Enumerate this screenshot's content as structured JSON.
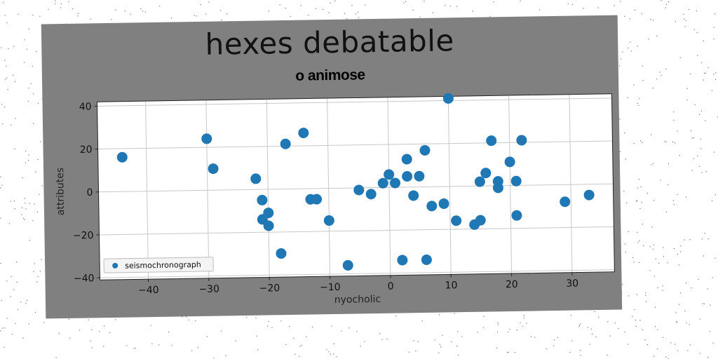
{
  "chart_data": {
    "type": "scatter",
    "title": "hexes debatable",
    "subtitle": "o animose",
    "xlabel": "nyocholic",
    "ylabel": "attributes",
    "xlim": [
      -48,
      37
    ],
    "ylim": [
      -41,
      42
    ],
    "xticks": [
      -40,
      -30,
      -20,
      -10,
      0,
      10,
      20,
      30
    ],
    "yticks": [
      -40,
      -20,
      0,
      20,
      40
    ],
    "grid": true,
    "legend_position": "lower-left",
    "series": [
      {
        "name": "seismochronograph",
        "color": "#1f77b4",
        "points": [
          [
            -44,
            16
          ],
          [
            -30,
            24
          ],
          [
            -29,
            10
          ],
          [
            -22,
            5
          ],
          [
            -21,
            -5
          ],
          [
            -21,
            -14
          ],
          [
            -20,
            -11
          ],
          [
            -20,
            -17
          ],
          [
            -18,
            -30
          ],
          [
            -17,
            21
          ],
          [
            -14,
            26
          ],
          [
            -13,
            -5
          ],
          [
            -12,
            -5
          ],
          [
            -10,
            -15
          ],
          [
            -7,
            -36
          ],
          [
            -5,
            -1
          ],
          [
            -3,
            -3
          ],
          [
            -1,
            2
          ],
          [
            0,
            6
          ],
          [
            1,
            2
          ],
          [
            2,
            -34
          ],
          [
            3,
            13
          ],
          [
            3,
            5
          ],
          [
            4,
            -4
          ],
          [
            5,
            5
          ],
          [
            6,
            -34
          ],
          [
            6,
            17
          ],
          [
            7,
            -9
          ],
          [
            9,
            -8
          ],
          [
            10,
            41
          ],
          [
            11,
            -16
          ],
          [
            14,
            -18
          ],
          [
            15,
            2
          ],
          [
            15,
            -16
          ],
          [
            16,
            6
          ],
          [
            17,
            21
          ],
          [
            18,
            2
          ],
          [
            18,
            -1
          ],
          [
            20,
            11
          ],
          [
            21,
            2
          ],
          [
            21,
            -14
          ],
          [
            22,
            21
          ],
          [
            29,
            -8
          ],
          [
            33,
            -5
          ]
        ]
      }
    ]
  }
}
